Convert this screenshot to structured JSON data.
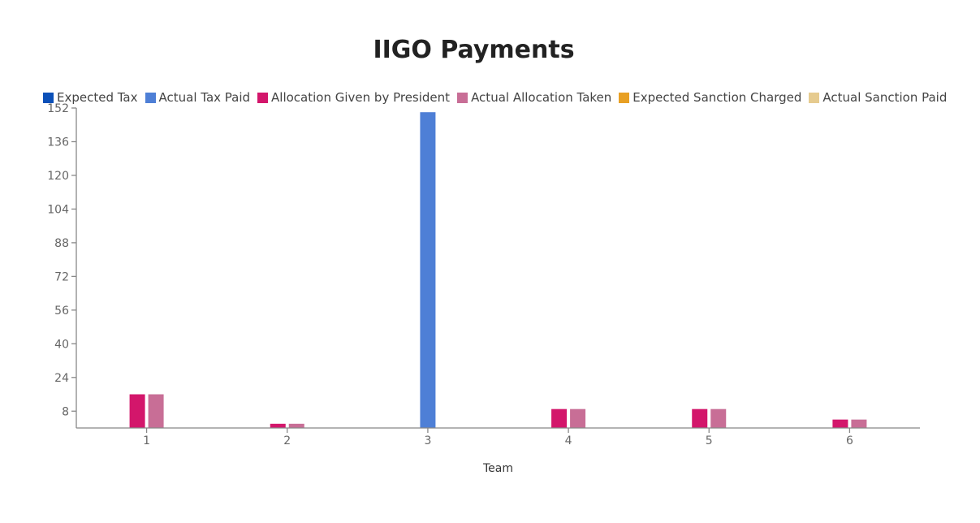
{
  "chart_data": {
    "type": "bar",
    "title": "IIGO Payments",
    "xlabel": "Team",
    "ylabel": "",
    "categories": [
      "1",
      "2",
      "3",
      "4",
      "5",
      "6"
    ],
    "yticks": [
      8,
      24,
      40,
      56,
      72,
      88,
      104,
      120,
      136,
      152
    ],
    "ylim": [
      0,
      152
    ],
    "legend_position": "top",
    "series": [
      {
        "name": "Expected Tax",
        "color": "#0b50b8",
        "values": [
          0,
          0,
          0,
          0,
          0,
          0
        ]
      },
      {
        "name": "Actual Tax Paid",
        "color": "#4e7fd6",
        "values": [
          0,
          0,
          150,
          0,
          0,
          0
        ]
      },
      {
        "name": "Allocation Given by President",
        "color": "#d3166b",
        "values": [
          16,
          2,
          0,
          9,
          9,
          4
        ]
      },
      {
        "name": "Actual Allocation Taken",
        "color": "#c86e96",
        "values": [
          16,
          2,
          0,
          9,
          9,
          4
        ]
      },
      {
        "name": "Expected Sanction Charged",
        "color": "#e8a024",
        "values": [
          0,
          0,
          0,
          0,
          0,
          0
        ]
      },
      {
        "name": "Actual Sanction Paid",
        "color": "#e6cb8f",
        "values": [
          0,
          0,
          0,
          0,
          0,
          0
        ]
      }
    ]
  }
}
